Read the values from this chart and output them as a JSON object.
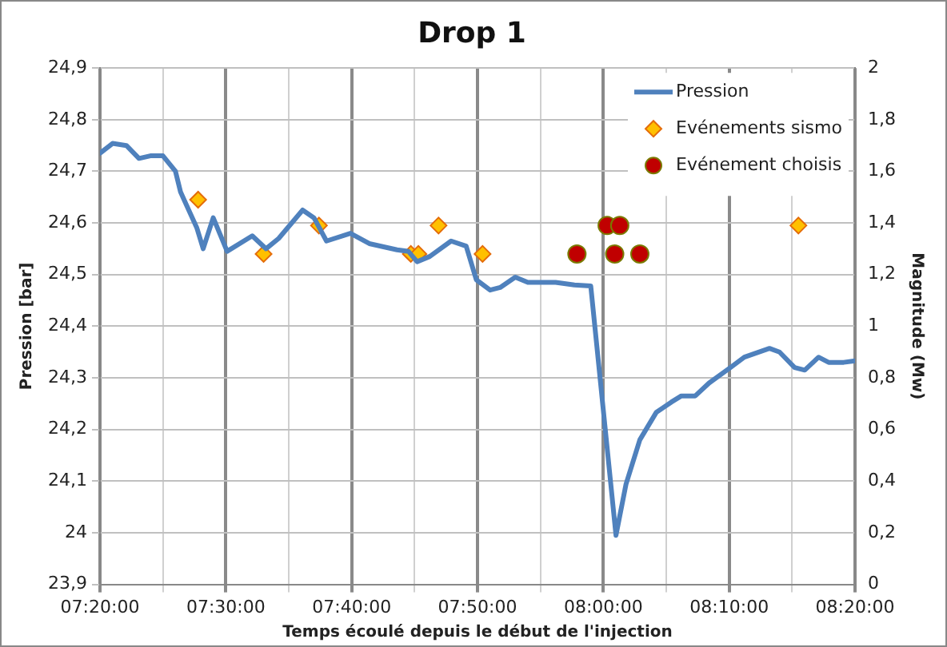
{
  "chart_data": {
    "type": "line",
    "title": "Drop 1",
    "xlabel": "Temps écoulé depuis le début de l'injection",
    "ylabel": "Pression [bar]",
    "y2label": "Magnitude (Mw)",
    "xlim": [
      7.3333,
      8.3333
    ],
    "xticks": [
      {
        "value": 7.3333,
        "label": "07:20:00"
      },
      {
        "value": 7.4167,
        "label": null
      },
      {
        "value": 7.5,
        "label": "07:30:00"
      },
      {
        "value": 7.5833,
        "label": null
      },
      {
        "value": 7.6667,
        "label": "07:40:00"
      },
      {
        "value": 7.75,
        "label": null
      },
      {
        "value": 7.8333,
        "label": "07:50:00"
      },
      {
        "value": 7.9167,
        "label": null
      },
      {
        "value": 8,
        "label": "08:00:00"
      },
      {
        "value": 8.0833,
        "label": null
      },
      {
        "value": 8.1667,
        "label": "08:10:00"
      },
      {
        "value": 8.25,
        "label": null
      },
      {
        "value": 8.3333,
        "label": "08:20:00"
      }
    ],
    "ylim": [
      23.9,
      24.9
    ],
    "yticks": [
      {
        "value": 23.9,
        "label": "23,9"
      },
      {
        "value": 24,
        "label": "24"
      },
      {
        "value": 24.1,
        "label": "24,1"
      },
      {
        "value": 24.2,
        "label": "24,2"
      },
      {
        "value": 24.3,
        "label": "24,3"
      },
      {
        "value": 24.4,
        "label": "24,4"
      },
      {
        "value": 24.5,
        "label": "24,5"
      },
      {
        "value": 24.6,
        "label": "24,6"
      },
      {
        "value": 24.7,
        "label": "24,7"
      },
      {
        "value": 24.8,
        "label": "24,8"
      },
      {
        "value": 24.9,
        "label": "24,9"
      }
    ],
    "y2lim": [
      0,
      2
    ],
    "y2ticks": [
      0,
      {
        "value": 0.2,
        "label": "0,2"
      },
      {
        "value": 0.4,
        "label": "0,4"
      },
      {
        "value": 0.6,
        "label": "0,6"
      },
      {
        "value": 0.8,
        "label": "0,8"
      },
      1,
      {
        "value": 1.2,
        "label": "1,2"
      },
      {
        "value": 1.4,
        "label": "1,4"
      },
      {
        "value": 1.6,
        "label": "1,6"
      },
      {
        "value": 1.8,
        "label": "1,8"
      },
      2
    ],
    "grid": true,
    "legend": "top right",
    "series": [
      {
        "name": "Pression",
        "type": "line",
        "marker": "none",
        "color": "#4f81bd",
        "x": [
          7.3333,
          7.35,
          7.3683,
          7.385,
          7.4,
          7.4167,
          7.4333,
          7.44,
          7.4617,
          7.47,
          7.4833,
          7.5017,
          7.535,
          7.5533,
          7.57,
          7.6017,
          7.6167,
          7.6333,
          7.665,
          7.69,
          7.7267,
          7.7417,
          7.7533,
          7.77,
          7.7983,
          7.8183,
          7.8317,
          7.85,
          7.8633,
          7.8833,
          7.9,
          7.9183,
          7.9367,
          7.9617,
          7.9833,
          8.0167,
          8.03,
          8.0483,
          8.07,
          8.09,
          8.1033,
          8.1217,
          8.14,
          8.1683,
          8.1867,
          8.22,
          8.2333,
          8.2533,
          8.2667,
          8.285,
          8.2983,
          8.3183,
          8.3333
        ],
        "values": [
          24.735,
          24.754,
          24.75,
          24.725,
          24.73,
          24.73,
          24.7,
          24.66,
          24.59,
          24.55,
          24.61,
          24.545,
          24.575,
          24.55,
          24.57,
          24.625,
          24.61,
          24.565,
          24.58,
          24.56,
          24.548,
          24.545,
          24.525,
          24.535,
          24.565,
          24.555,
          24.49,
          24.47,
          24.475,
          24.495,
          24.485,
          24.485,
          24.485,
          24.48,
          24.478,
          23.995,
          24.094,
          24.18,
          24.233,
          24.253,
          24.265,
          24.265,
          24.29,
          24.32,
          24.34,
          24.357,
          24.35,
          24.32,
          24.315,
          24.34,
          24.33,
          24.33,
          24.333
        ]
      },
      {
        "name": "Evénements sismo",
        "type": "scatter",
        "marker": "diamond",
        "axis": "y2",
        "color": "#ffc000",
        "x": [
          7.4633,
          7.55,
          7.6233,
          7.745,
          7.755,
          7.7817,
          7.84,
          8.2583
        ],
        "values": [
          1.49,
          1.28,
          1.39,
          1.28,
          1.28,
          1.39,
          1.28,
          1.39
        ]
      },
      {
        "name": "Evénement choisis",
        "type": "scatter",
        "marker": "circle",
        "axis": "y2",
        "color": "#c00000",
        "x": [
          7.965,
          8.005,
          8.0217,
          8.015,
          8.0483
        ],
        "values": [
          1.28,
          1.39,
          1.39,
          1.28,
          1.28
        ]
      }
    ]
  }
}
